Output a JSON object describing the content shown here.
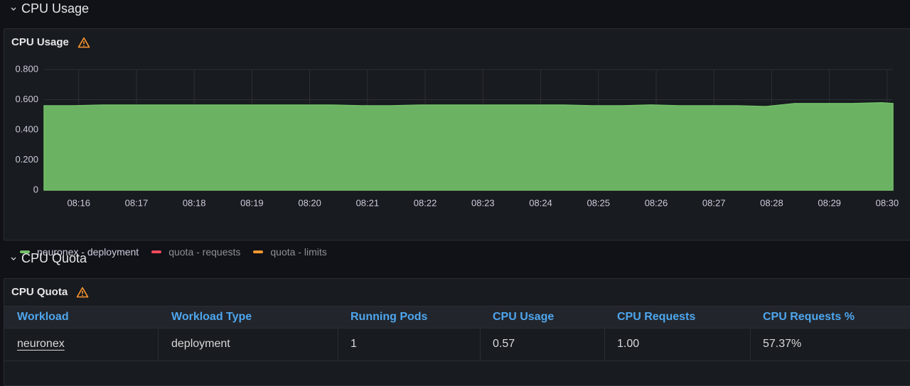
{
  "usage_row": "CPU Usage",
  "usage_panel": "CPU Usage",
  "chart_data": {
    "type": "area",
    "x": [
      495.4,
      495.9,
      496.4,
      496.9,
      497.4,
      497.9,
      498.4,
      498.9,
      499.4,
      499.9,
      500.4,
      500.9,
      501.4,
      501.9,
      502.4,
      502.9,
      503.4,
      503.9,
      504.4,
      504.9,
      505.4,
      505.9,
      506.4,
      506.9,
      507.4,
      507.9,
      508.4,
      508.9,
      509.4,
      509.9,
      510.1
    ],
    "series": [
      {
        "name": "neuronex - deployment",
        "color": "#73bf69",
        "values": [
          0.56,
          0.56,
          0.565,
          0.565,
          0.565,
          0.565,
          0.565,
          0.565,
          0.565,
          0.565,
          0.565,
          0.56,
          0.56,
          0.565,
          0.565,
          0.565,
          0.565,
          0.565,
          0.565,
          0.56,
          0.56,
          0.565,
          0.56,
          0.56,
          0.56,
          0.555,
          0.575,
          0.575,
          0.575,
          0.58,
          0.575
        ]
      },
      {
        "name": "quota - requests",
        "color": "#f2495c",
        "values": [
          null,
          null,
          null,
          null,
          null,
          null,
          null,
          null,
          null,
          null,
          null,
          null,
          null,
          null,
          null,
          null,
          null,
          null,
          null,
          null,
          null,
          null,
          null,
          null,
          null,
          null,
          null,
          null,
          null,
          null,
          null
        ]
      },
      {
        "name": "quota - limits",
        "color": "#ff9830",
        "values": [
          null,
          null,
          null,
          null,
          null,
          null,
          null,
          null,
          null,
          null,
          null,
          null,
          null,
          null,
          null,
          null,
          null,
          null,
          null,
          null,
          null,
          null,
          null,
          null,
          null,
          null,
          null,
          null,
          null,
          null,
          null
        ]
      }
    ],
    "xlim": [
      495.4,
      510.1
    ],
    "xticks": [
      {
        "value": 496,
        "label": "08:16"
      },
      {
        "value": 497,
        "label": "08:17"
      },
      {
        "value": 498,
        "label": "08:18"
      },
      {
        "value": 499,
        "label": "08:19"
      },
      {
        "value": 500,
        "label": "08:20"
      },
      {
        "value": 501,
        "label": "08:21"
      },
      {
        "value": 502,
        "label": "08:22"
      },
      {
        "value": 503,
        "label": "08:23"
      },
      {
        "value": 504,
        "label": "08:24"
      },
      {
        "value": 505,
        "label": "08:25"
      },
      {
        "value": 506,
        "label": "08:26"
      },
      {
        "value": 507,
        "label": "08:27"
      },
      {
        "value": 508,
        "label": "08:28"
      },
      {
        "value": 509,
        "label": "08:29"
      },
      {
        "value": 510,
        "label": "08:30"
      }
    ],
    "ylim": [
      0,
      0.8
    ],
    "yticks": [
      0,
      {
        "value": 0.2,
        "label": "0.200"
      },
      {
        "value": 0.4,
        "label": "0.400"
      },
      {
        "value": 0.6,
        "label": "0.600"
      },
      {
        "value": 0.8,
        "label": "0.800"
      }
    ],
    "grid": true
  },
  "quota_row": "CPU Quota",
  "quota_panel": "CPU Quota",
  "table": {
    "headers": [
      "Workload",
      "Workload Type",
      "Running Pods",
      "CPU Usage",
      "CPU Requests",
      "CPU Requests %"
    ],
    "rows": [
      [
        "neuronex",
        "deployment",
        "1",
        "0.57",
        "1.00",
        "57.37%"
      ]
    ]
  }
}
